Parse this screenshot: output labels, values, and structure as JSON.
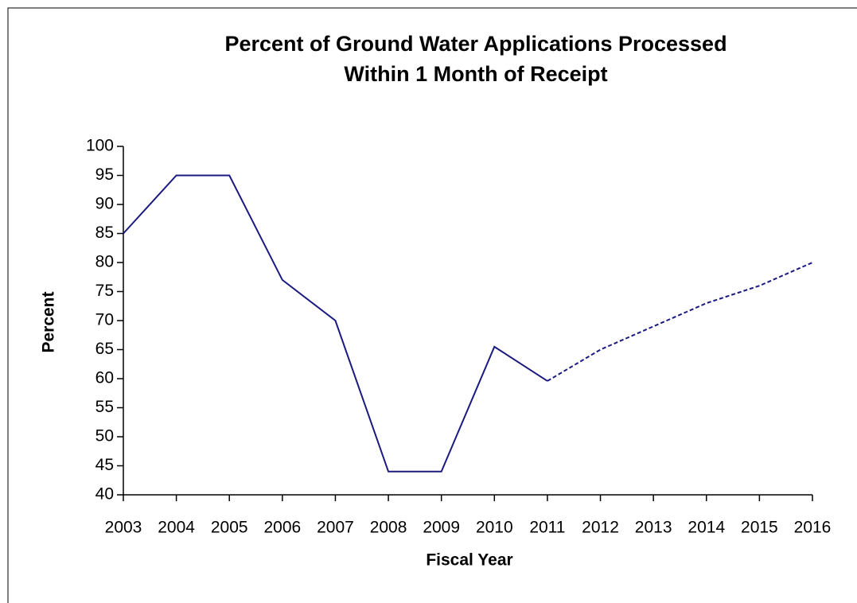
{
  "chart_data": {
    "type": "line",
    "title": [
      "Percent of Ground Water Applications Processed",
      "Within 1 Month of Receipt"
    ],
    "xlabel": "Fiscal Year",
    "ylabel": "Percent",
    "categories": [
      "2003",
      "2004",
      "2005",
      "2006",
      "2007",
      "2008",
      "2009",
      "2010",
      "2011",
      "2012",
      "2013",
      "2014",
      "2015",
      "2016"
    ],
    "series": [
      {
        "color": "#1a1a80",
        "dash": false,
        "values": [
          85,
          95,
          95,
          77,
          70,
          44,
          44,
          65.5,
          59.6,
          null,
          null,
          null,
          null,
          null
        ]
      },
      {
        "color": "#1a1a80",
        "dash": true,
        "values": [
          null,
          null,
          null,
          null,
          null,
          null,
          null,
          null,
          59.6,
          65,
          69,
          73,
          76,
          80
        ]
      }
    ],
    "ylim": [
      40,
      100
    ],
    "yticks": [
      40,
      45,
      50,
      55,
      60,
      65,
      70,
      75,
      80,
      85,
      90,
      95,
      100
    ],
    "grid": false
  }
}
